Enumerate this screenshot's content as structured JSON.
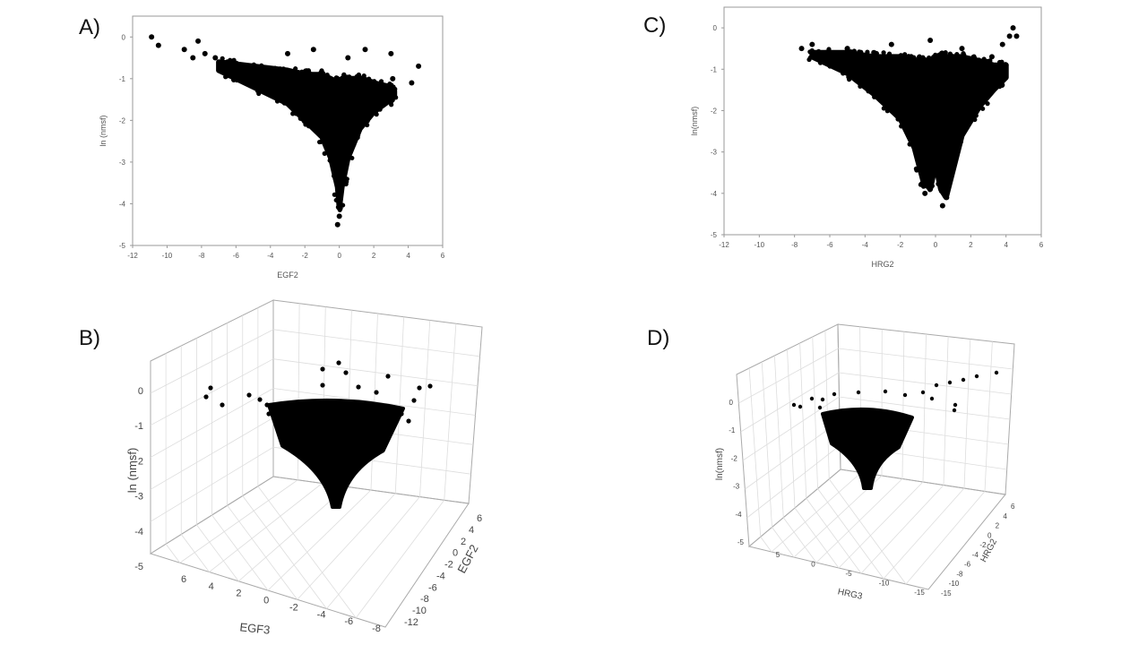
{
  "chart_data": [
    {
      "panel": "A)",
      "type": "scatter",
      "xlabel": "EGF2",
      "ylabel": "ln (nmsf)",
      "xlim": [
        -12,
        6
      ],
      "ylim": [
        -5,
        0.5
      ],
      "xticks": [
        "-12",
        "-10",
        "-8",
        "-6",
        "-4",
        "-2",
        "0",
        "2",
        "4",
        "6"
      ],
      "yticks": [
        "0",
        "-1",
        "-2",
        "-3",
        "-4",
        "-5"
      ],
      "points": [
        [
          -10.9,
          0.0
        ],
        [
          -10.5,
          -0.2
        ],
        [
          -9.0,
          -0.3
        ],
        [
          -8.5,
          -0.5
        ],
        [
          -8.2,
          -0.1
        ],
        [
          -7.8,
          -0.4
        ],
        [
          -7.2,
          -0.5
        ],
        [
          -6.5,
          -0.6
        ],
        [
          -3.0,
          -0.4
        ],
        [
          -1.5,
          -0.3
        ],
        [
          0.5,
          -0.5
        ],
        [
          1.5,
          -0.3
        ],
        [
          3.0,
          -0.4
        ],
        [
          4.2,
          -1.1
        ],
        [
          4.6,
          -0.7
        ],
        [
          0.0,
          -4.3
        ],
        [
          -0.1,
          -4.5
        ],
        [
          3.1,
          -1.0
        ]
      ],
      "envelope_x": [
        -7.0,
        -5.0,
        -3.0,
        -2.0,
        -1.0,
        -0.5,
        -0.1,
        0.0,
        0.15,
        0.5,
        1.2,
        2.0,
        3.0,
        3.2
      ],
      "envelope_top": [
        -0.6,
        -0.7,
        -0.8,
        -0.9,
        -0.9,
        -1.0,
        -1.1,
        -1.1,
        -1.0,
        -1.0,
        -1.0,
        -1.1,
        -1.2,
        -1.3
      ],
      "envelope_bottom": [
        -0.8,
        -1.2,
        -1.6,
        -2.0,
        -2.4,
        -2.9,
        -3.6,
        -4.1,
        -3.6,
        -2.9,
        -2.2,
        -1.8,
        -1.5,
        -1.4
      ]
    },
    {
      "panel": "C)",
      "type": "scatter",
      "xlabel": "HRG2",
      "ylabel": "ln(nmsf)",
      "xlim": [
        -12,
        6
      ],
      "ylim": [
        -5,
        0.5
      ],
      "xticks": [
        "-12",
        "-10",
        "-8",
        "-6",
        "-4",
        "-2",
        "0",
        "2",
        "4",
        "6"
      ],
      "yticks": [
        "0",
        "-1",
        "-2",
        "-3",
        "-4",
        "-5"
      ],
      "points": [
        [
          -7.6,
          -0.5
        ],
        [
          -7.0,
          -0.4
        ],
        [
          -6.2,
          -0.6
        ],
        [
          -5.0,
          -0.5
        ],
        [
          -3.5,
          -0.6
        ],
        [
          -2.5,
          -0.4
        ],
        [
          -0.3,
          -0.3
        ],
        [
          1.5,
          -0.5
        ],
        [
          3.2,
          -0.7
        ],
        [
          3.8,
          -0.4
        ],
        [
          4.2,
          -0.2
        ],
        [
          4.4,
          0.0
        ],
        [
          4.6,
          -0.2
        ],
        [
          4.0,
          -0.9
        ],
        [
          -0.6,
          -4.0
        ],
        [
          0.4,
          -4.3
        ],
        [
          0.5,
          -3.9
        ]
      ],
      "envelope_x": [
        -7.0,
        -5.0,
        -3.5,
        -2.0,
        -1.2,
        -0.7,
        -0.3,
        0.0,
        0.3,
        0.6,
        1.5,
        2.5,
        3.3,
        4.0
      ],
      "envelope_top": [
        -0.6,
        -0.6,
        -0.7,
        -0.7,
        -0.8,
        -0.8,
        -0.8,
        -0.8,
        -0.7,
        -0.7,
        -0.7,
        -0.8,
        -0.9,
        -0.9
      ],
      "envelope_bottom": [
        -0.7,
        -1.1,
        -1.6,
        -2.2,
        -2.9,
        -3.7,
        -3.9,
        -3.3,
        -3.9,
        -4.1,
        -2.6,
        -1.9,
        -1.5,
        -1.2
      ]
    },
    {
      "panel": "B)",
      "type": "scatter",
      "projection": "3d",
      "zlabel": "ln (nmsf)",
      "xlabel": "EGF3",
      "ylabel": "EGF2",
      "zticks": [
        "0",
        "-1",
        "-2",
        "-3",
        "-4",
        "-5"
      ],
      "xticks": [
        "6",
        "4",
        "2",
        "0",
        "-2",
        "-4",
        "-6",
        "-8"
      ],
      "yticks": [
        "6",
        "4",
        "2",
        "0",
        "-2",
        "-4",
        "-6",
        "-8",
        "-10",
        "-12"
      ]
    },
    {
      "panel": "D)",
      "type": "scatter",
      "projection": "3d",
      "zlabel": "ln(nmsf)",
      "xlabel": "HRG3",
      "ylabel": "HRG2",
      "zticks": [
        "0",
        "-1",
        "-2",
        "-3",
        "-4",
        "-5"
      ],
      "xticks": [
        "5",
        "0",
        "-5",
        "-10",
        "-15"
      ],
      "yticks": [
        "6",
        "4",
        "2",
        "0",
        "-2",
        "-4",
        "-6",
        "-8",
        "-10",
        "-15"
      ]
    }
  ]
}
